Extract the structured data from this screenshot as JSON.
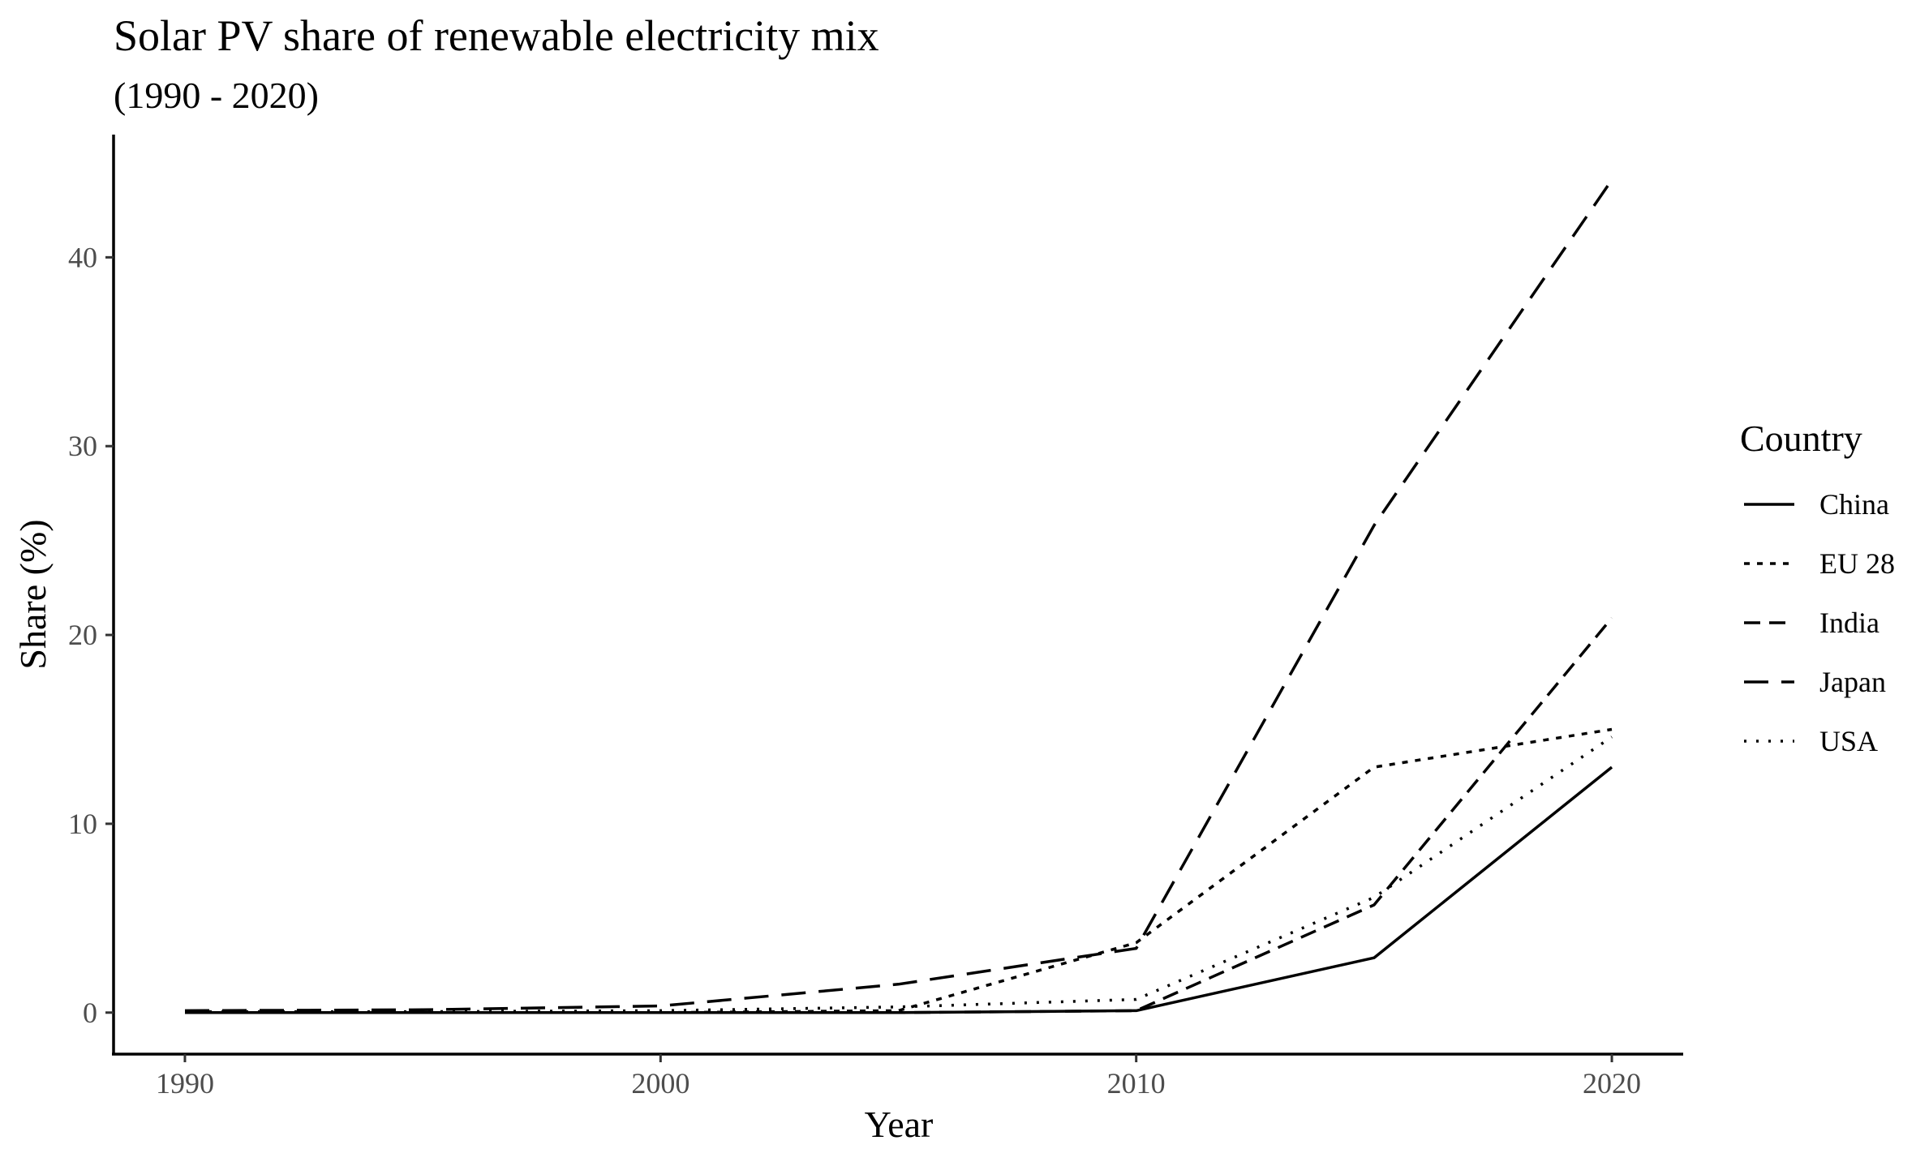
{
  "chart_data": {
    "type": "line",
    "title": "Solar PV share of renewable electricity mix",
    "subtitle": "(1990 - 2020)",
    "xlabel": "Year",
    "ylabel": "Share (%)",
    "xlim": [
      1988.5,
      2021.5
    ],
    "ylim": [
      -2.2,
      46.5
    ],
    "x_ticks": [
      1990,
      2000,
      2010,
      2020
    ],
    "y_ticks": [
      0,
      10,
      20,
      30,
      40
    ],
    "x": [
      1990,
      1995,
      2000,
      2005,
      2010,
      2015,
      2020
    ],
    "grid": false,
    "legend": {
      "title": "Country",
      "position": "right"
    },
    "series": [
      {
        "name": "China",
        "dash": "solid",
        "values": [
          0,
          0,
          0,
          0,
          0.1,
          2.9,
          13.0
        ]
      },
      {
        "name": "EU 28",
        "dash": "dotted-dash",
        "values": [
          0,
          0,
          0,
          0.1,
          3.7,
          13.0,
          15.0
        ]
      },
      {
        "name": "India",
        "dash": "dashed",
        "values": [
          0,
          0,
          0,
          0,
          0.1,
          5.7,
          20.9
        ]
      },
      {
        "name": "Japan",
        "dash": "long-dashed",
        "values": [
          0.1,
          0.15,
          0.35,
          1.5,
          3.4,
          25.8,
          44.1
        ]
      },
      {
        "name": "USA",
        "dash": "dotted",
        "values": [
          0.05,
          0.05,
          0.1,
          0.3,
          0.7,
          6.1,
          14.6
        ]
      }
    ]
  }
}
